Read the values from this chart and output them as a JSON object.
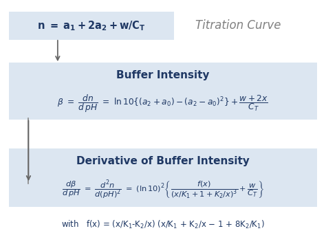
{
  "background_color": "#ffffff",
  "top_box_color": "#dce6f1",
  "mid_box_color": "#dce6f1",
  "bot_box_color": "#dce6f1",
  "title_text": "Titration Curve",
  "title_color": "#808080",
  "top_formula_color": "#1f3864",
  "buffer_title": "Buffer Intensity",
  "buffer_title_color": "#1f3864",
  "deriv_title": "Derivative of Buffer Intensity",
  "deriv_title_color": "#1f3864",
  "footer_color": "#1f3864",
  "arrow_color": "#666666",
  "line_color": "#888888"
}
